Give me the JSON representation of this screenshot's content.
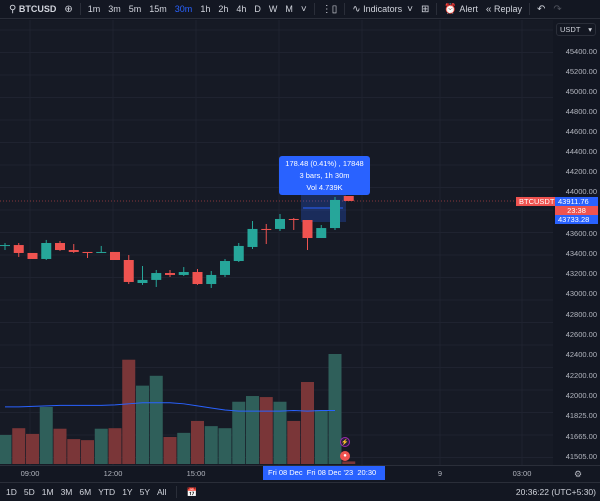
{
  "toolbar": {
    "symbol": "BTCUSD",
    "intervals": [
      "1m",
      "3m",
      "5m",
      "15m",
      "30m",
      "1h",
      "2h",
      "4h",
      "D",
      "W",
      "M"
    ],
    "active_interval": "30m",
    "indicators": "Indicators",
    "alert": "Alert",
    "replay": "Replay",
    "icons": {
      "search": "search-icon",
      "add": "plus-circle-icon",
      "chevron": "chevron-down-icon",
      "candles": "candlestick-icon",
      "indicators": "indicators-icon",
      "layout": "grid-icon",
      "alert": "alarm-clock-icon",
      "replay": "replay-icon",
      "undo": "undo-icon",
      "redo": "redo-icon"
    }
  },
  "colors": {
    "up": "#26a69a",
    "down": "#ef5350",
    "accent": "#2962ff",
    "background": "#161a25",
    "ma": "#2962ff"
  },
  "price_axis": {
    "currency": "USDT",
    "labels": [
      "45400.00",
      "45200.00",
      "45000.00",
      "44800.00",
      "44600.00",
      "44400.00",
      "44200.00",
      "44000.00",
      "43600.00",
      "43400.00",
      "43200.00",
      "43000.00",
      "42800.00",
      "42600.00",
      "42400.00",
      "42200.00",
      "42000.00",
      "41825.00",
      "41665.00",
      "41505.00"
    ],
    "symbol_tag": "BTCUSDT",
    "last_price": "43911.76",
    "countdown": "23:38",
    "measure_price": "43733.28"
  },
  "tooltip": {
    "line1": "178.48 (0.41%) , 17848",
    "line2": "3 bars, 1h 30m",
    "line3": "Vol 4.739K"
  },
  "time_axis": {
    "labels": [
      {
        "t": "09:00"
      },
      {
        "t": "12:00"
      },
      {
        "t": "15:00"
      },
      {
        "t": "9"
      },
      {
        "t": "03:00"
      }
    ],
    "highlight_start": "Fri 08 Dec",
    "highlight_end": "Fri 08 Dec '23",
    "highlight_time": "20:30"
  },
  "chart_data": {
    "type": "candlestick",
    "candles": [
      {
        "o": 43494,
        "h": 43520,
        "l": 43458,
        "c": 43502
      },
      {
        "o": 43502,
        "h": 43520,
        "l": 43397,
        "c": 43432
      },
      {
        "o": 43432,
        "h": 43432,
        "l": 43379,
        "c": 43379
      },
      {
        "o": 43379,
        "h": 43547,
        "l": 43370,
        "c": 43520
      },
      {
        "o": 43520,
        "h": 43538,
        "l": 43450,
        "c": 43458
      },
      {
        "o": 43458,
        "h": 43511,
        "l": 43432,
        "c": 43441
      },
      {
        "o": 43441,
        "h": 43441,
        "l": 43388,
        "c": 43432
      },
      {
        "o": 43432,
        "h": 43494,
        "l": 43432,
        "c": 43441
      },
      {
        "o": 43441,
        "h": 43441,
        "l": 43370,
        "c": 43370
      },
      {
        "o": 43370,
        "h": 43414,
        "l": 43158,
        "c": 43176
      },
      {
        "o": 43167,
        "h": 43317,
        "l": 43150,
        "c": 43194
      },
      {
        "o": 43194,
        "h": 43282,
        "l": 43132,
        "c": 43255
      },
      {
        "o": 43255,
        "h": 43282,
        "l": 43220,
        "c": 43238
      },
      {
        "o": 43238,
        "h": 43308,
        "l": 43229,
        "c": 43264
      },
      {
        "o": 43264,
        "h": 43291,
        "l": 43150,
        "c": 43158
      },
      {
        "o": 43158,
        "h": 43273,
        "l": 43123,
        "c": 43238
      },
      {
        "o": 43238,
        "h": 43379,
        "l": 43220,
        "c": 43361
      },
      {
        "o": 43361,
        "h": 43520,
        "l": 43352,
        "c": 43494
      },
      {
        "o": 43485,
        "h": 43714,
        "l": 43467,
        "c": 43644
      },
      {
        "o": 43644,
        "h": 43688,
        "l": 43511,
        "c": 43635
      },
      {
        "o": 43644,
        "h": 43776,
        "l": 43626,
        "c": 43732
      },
      {
        "o": 43732,
        "h": 43741,
        "l": 43635,
        "c": 43723
      },
      {
        "o": 43723,
        "h": 43723,
        "l": 43458,
        "c": 43564
      },
      {
        "o": 43564,
        "h": 43679,
        "l": 43564,
        "c": 43652
      },
      {
        "o": 43652,
        "h": 43926,
        "l": 43635,
        "c": 43900
      },
      {
        "o": 43935,
        "h": 43935,
        "l": 43891,
        "c": 43891
      }
    ],
    "volume_k": [
      0.56,
      0.69,
      0.58,
      1.1,
      0.68,
      0.48,
      0.46,
      0.68,
      0.69,
      2.01,
      1.51,
      1.7,
      0.52,
      0.6,
      0.83,
      0.73,
      0.69,
      1.2,
      1.31,
      1.29,
      1.2,
      0.83,
      1.58,
      1.04,
      2.12,
      0.05
    ],
    "volume_ma_k": [
      1.1,
      1.1,
      1.11,
      1.12,
      1.13,
      1.13,
      1.13,
      1.13,
      1.14,
      1.16,
      1.18,
      1.18,
      1.18,
      1.16,
      1.12,
      1.08,
      1.04,
      1.02,
      1.02,
      1.02,
      1.02,
      1.03,
      1.02,
      1.03,
      1.03
    ]
  },
  "bottom_bar": {
    "ranges": [
      "1D",
      "5D",
      "1M",
      "3M",
      "6M",
      "YTD",
      "1Y",
      "5Y",
      "All"
    ],
    "clock": "20:36:22 (UTC+5:30)"
  }
}
